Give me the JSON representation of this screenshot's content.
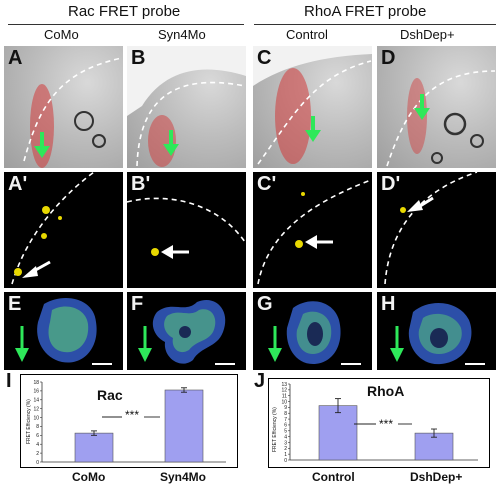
{
  "headers": {
    "rac_probe": "Rac FRET probe",
    "rhoa_probe": "RhoA FRET probe",
    "como": "CoMo",
    "syn4mo": "Syn4Mo",
    "control": "Control",
    "dshdep": "DshDep+"
  },
  "panel_labels": {
    "A": "A",
    "B": "B",
    "C": "C",
    "D": "D",
    "A2": "A'",
    "B2": "B'",
    "C2": "C'",
    "D2": "D'",
    "E": "E",
    "F": "F",
    "G": "G",
    "H": "H",
    "I": "I",
    "J": "J"
  },
  "colors": {
    "bar_fill": "#9f9ff0",
    "arrow_green": "#2ee85a",
    "fluor_yellow": "#e8d800",
    "cell_blue": "#2c4fa8",
    "cell_green": "#58c27a"
  },
  "chart_data": [
    {
      "type": "bar",
      "title": "Rac",
      "categories": [
        "CoMo",
        "Syn4Mo"
      ],
      "values": [
        6.5,
        16.2
      ],
      "errors": [
        0.5,
        0.5
      ],
      "ylabel": "FRET Efficiency (%)",
      "ylim": [
        0,
        18
      ],
      "yticks": [
        "0",
        "2",
        "4",
        "6",
        "8",
        "10",
        "12",
        "14",
        "16",
        "18"
      ],
      "annotation": "***"
    },
    {
      "type": "bar",
      "title": "RhoA",
      "categories": [
        "Control",
        "DshDep+"
      ],
      "values": [
        9.3,
        4.6
      ],
      "errors": [
        1.2,
        0.7
      ],
      "ylabel": "FRET Efficiency (%)",
      "ylim": [
        0,
        13
      ],
      "yticks": [
        "0",
        "1",
        "2",
        "3",
        "4",
        "5",
        "6",
        "7",
        "8",
        "9",
        "10",
        "11",
        "12",
        "13"
      ],
      "annotation": "***"
    }
  ]
}
